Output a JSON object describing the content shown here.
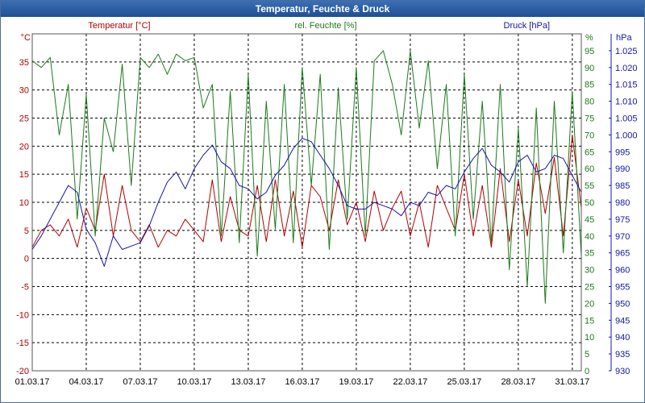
{
  "window": {
    "title": "Temperatur, Feuchte & Druck"
  },
  "colors": {
    "temperature": "#b00000",
    "humidity": "#1b7a1b",
    "pressure": "#1515a8",
    "grid": "#000000"
  },
  "chart_data": {
    "type": "line",
    "title": "Temperatur, Feuchte & Druck",
    "xlabel": "",
    "x_tick_labels": [
      "01.03.17",
      "04.03.17",
      "07.03.17",
      "10.03.17",
      "13.03.17",
      "16.03.17",
      "19.03.17",
      "22.03.17",
      "25.03.17",
      "28.03.17",
      "31.03.17"
    ],
    "x_range": [
      0,
      30.5
    ],
    "axes": {
      "temperature": {
        "label": "Temperatur [°C]",
        "unit": "°C",
        "ylim": [
          -20,
          40
        ],
        "ticks": [
          -20,
          -15,
          -10,
          -5,
          0,
          5,
          10,
          15,
          20,
          25,
          30,
          35
        ]
      },
      "humidity": {
        "label": "rel. Feuchte [%]",
        "unit": "%",
        "ylim": [
          0,
          100
        ],
        "ticks": [
          0,
          5,
          10,
          15,
          20,
          25,
          30,
          35,
          40,
          45,
          50,
          55,
          60,
          65,
          70,
          75,
          80,
          85,
          90,
          95
        ]
      },
      "pressure": {
        "label": "Druck [hPa]",
        "unit": "hPa",
        "ylim": [
          930,
          1030
        ],
        "ticks": [
          "930",
          "935",
          "940",
          "945",
          "950",
          "955",
          "960",
          "965",
          "970",
          "975",
          "980",
          "985",
          "990",
          "995",
          "1.000",
          "1.005",
          "1.010",
          "1.015",
          "1.020",
          "1.025"
        ],
        "tick_values": [
          930,
          935,
          940,
          945,
          950,
          955,
          960,
          965,
          970,
          975,
          980,
          985,
          990,
          995,
          1000,
          1005,
          1010,
          1015,
          1020,
          1025
        ]
      }
    },
    "series": [
      {
        "name": "Temperatur [°C]",
        "axis": "temperature",
        "x": [
          0,
          0.5,
          1,
          1.5,
          2,
          2.5,
          3,
          3.5,
          4,
          4.5,
          5,
          5.5,
          6,
          6.5,
          7,
          7.5,
          8,
          8.5,
          9,
          9.5,
          10,
          10.5,
          11,
          11.5,
          12,
          12.5,
          13,
          13.5,
          14,
          14.5,
          15,
          15.5,
          16,
          16.5,
          17,
          17.5,
          18,
          18.5,
          19,
          19.5,
          20,
          20.5,
          21,
          21.5,
          22,
          22.5,
          23,
          23.5,
          24,
          24.5,
          25,
          25.5,
          26,
          26.5,
          27,
          27.5,
          28,
          28.5,
          29,
          29.5,
          30,
          30.5
        ],
        "values": [
          2,
          5,
          6,
          4,
          7,
          2,
          9,
          5,
          15,
          4,
          13,
          5,
          3,
          6,
          2,
          5,
          4,
          7,
          5,
          3,
          14,
          3,
          11,
          5,
          4,
          13,
          3,
          14,
          4,
          12,
          2,
          13,
          11,
          5,
          14,
          6,
          10,
          3,
          12,
          5,
          9,
          12,
          4,
          10,
          2,
          13,
          9,
          5,
          15,
          4,
          13,
          2,
          16,
          3,
          14,
          4,
          17,
          8,
          18,
          4,
          22,
          9
        ]
      },
      {
        "name": "rel. Feuchte [%]",
        "axis": "humidity",
        "x": [
          0,
          0.5,
          1,
          1.5,
          2,
          2.5,
          3,
          3.5,
          4,
          4.5,
          5,
          5.5,
          6,
          6.5,
          7,
          7.5,
          8,
          8.5,
          9,
          9.5,
          10,
          10.5,
          11,
          11.5,
          12,
          12.5,
          13,
          13.5,
          14,
          14.5,
          15,
          15.5,
          16,
          16.5,
          17,
          17.5,
          18,
          18.5,
          19,
          19.5,
          20,
          20.5,
          21,
          21.5,
          22,
          22.5,
          23,
          23.5,
          24,
          24.5,
          25,
          25.5,
          26,
          26.5,
          27,
          27.5,
          28,
          28.5,
          29,
          29.5,
          30,
          30.5
        ],
        "values": [
          92,
          90,
          93,
          70,
          85,
          45,
          82,
          40,
          75,
          65,
          91,
          55,
          93,
          90,
          94,
          88,
          94,
          92,
          93,
          78,
          85,
          40,
          83,
          38,
          88,
          34,
          80,
          42,
          85,
          38,
          90,
          55,
          88,
          36,
          84,
          45,
          90,
          40,
          92,
          95,
          85,
          70,
          95,
          72,
          92,
          60,
          85,
          40,
          88,
          45,
          80,
          38,
          85,
          30,
          72,
          25,
          78,
          20,
          80,
          35,
          83,
          34
        ]
      },
      {
        "name": "Druck [hPa]",
        "axis": "pressure",
        "x": [
          0,
          0.5,
          1,
          1.5,
          2,
          2.5,
          3,
          3.5,
          4,
          4.5,
          5,
          5.5,
          6,
          6.5,
          7,
          7.5,
          8,
          8.5,
          9,
          9.5,
          10,
          10.5,
          11,
          11.5,
          12,
          12.5,
          13,
          13.5,
          14,
          14.5,
          15,
          15.5,
          16,
          16.5,
          17,
          17.5,
          18,
          18.5,
          19,
          19.5,
          20,
          20.5,
          21,
          21.5,
          22,
          22.5,
          23,
          23.5,
          24,
          24.5,
          25,
          25.5,
          26,
          26.5,
          27,
          27.5,
          28,
          28.5,
          29,
          29.5,
          30,
          30.5
        ],
        "values": [
          966,
          970,
          975,
          980,
          985,
          983,
          972,
          968,
          961,
          970,
          966,
          967,
          968,
          973,
          980,
          986,
          989,
          984,
          990,
          994,
          997,
          992,
          990,
          985,
          984,
          981,
          983,
          988,
          991,
          996,
          999,
          998,
          994,
          990,
          985,
          979,
          978,
          978,
          980,
          979,
          978,
          976,
          980,
          979,
          983,
          982,
          985,
          984,
          989,
          993,
          996,
          991,
          989,
          986,
          992,
          994,
          989,
          990,
          994,
          993,
          988,
          983
        ]
      }
    ],
    "legend": "top"
  }
}
